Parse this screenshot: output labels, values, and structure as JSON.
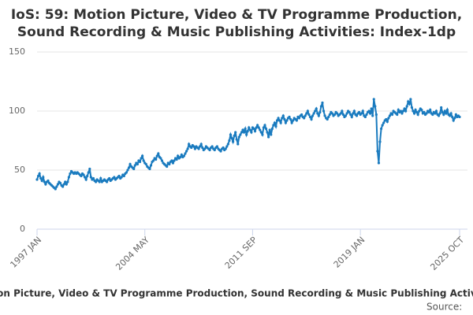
{
  "chart_data": {
    "type": "line",
    "title": [
      "IoS: 59: Motion Picture, Video & TV Programme Production,",
      "Sound Recording & Music Publishing Activities: Index-1dp"
    ],
    "source": "Source:",
    "categories": [
      "1997 JAN",
      null,
      null,
      null,
      null,
      null,
      null,
      null,
      null,
      null,
      null,
      null,
      null,
      null,
      null,
      null,
      null,
      null,
      null,
      null,
      null,
      null,
      null,
      null,
      null,
      null,
      null,
      null,
      null,
      null,
      null,
      null,
      null,
      null,
      null,
      null,
      null,
      null,
      null,
      null,
      null,
      null,
      null,
      null,
      null,
      null,
      null,
      null,
      null,
      null,
      null,
      null,
      null,
      null,
      null,
      null,
      null,
      null,
      null,
      null,
      null,
      null,
      null,
      null,
      null,
      null,
      null,
      null,
      null,
      null,
      null,
      null,
      null,
      null,
      null,
      null,
      null,
      null,
      null,
      null,
      null,
      null,
      null,
      null,
      null,
      null,
      null,
      null,
      "2004 MAY",
      null,
      null,
      null,
      null,
      null,
      null,
      null,
      null,
      null,
      null,
      null,
      null,
      null,
      null,
      null,
      null,
      null,
      null,
      null,
      null,
      null,
      null,
      null,
      null,
      null,
      null,
      null,
      null,
      null,
      null,
      null,
      null,
      null,
      null,
      null,
      null,
      null,
      null,
      null,
      null,
      null,
      null,
      null,
      null,
      null,
      null,
      null,
      null,
      null,
      null,
      null,
      null,
      null,
      null,
      null,
      null,
      null,
      null,
      null,
      null,
      null,
      null,
      null,
      null,
      null,
      null,
      null,
      null,
      null,
      null,
      null,
      null,
      null,
      null,
      null,
      null,
      null,
      null,
      null,
      null,
      null,
      null,
      null,
      null,
      null,
      null,
      null,
      "2011 SEP",
      null,
      null,
      null,
      null,
      null,
      null,
      null,
      null,
      null,
      null,
      null,
      null,
      null,
      null,
      null,
      null,
      null,
      null,
      null,
      null,
      null,
      null,
      null,
      null,
      null,
      null,
      null,
      null,
      null,
      null,
      null,
      null,
      null,
      null,
      null,
      null,
      null,
      null,
      null,
      null,
      null,
      null,
      null,
      null,
      null,
      null,
      null,
      null,
      null,
      null,
      null,
      null,
      null,
      null,
      null,
      null,
      null,
      null,
      null,
      null,
      null,
      null,
      null,
      null,
      null,
      null,
      null,
      null,
      null,
      null,
      null,
      null,
      null,
      null,
      null,
      null,
      null,
      null,
      null,
      null,
      null,
      null,
      null,
      null,
      null,
      null,
      null,
      "2019 JAN",
      null,
      null,
      null,
      null,
      null,
      null,
      null,
      null,
      null,
      null,
      null,
      null,
      null,
      null,
      null,
      null,
      null,
      null,
      null,
      null,
      null,
      null,
      null,
      null,
      null,
      null,
      null,
      null,
      null,
      null,
      null,
      null,
      null,
      null,
      null,
      null,
      null,
      null,
      null,
      null,
      null,
      null,
      null,
      null,
      null,
      null,
      null,
      null,
      null,
      null,
      null,
      null,
      null,
      null,
      null,
      null,
      null,
      null,
      null,
      null,
      null,
      null,
      null,
      null,
      null,
      null,
      null,
      null,
      null,
      null,
      null,
      null,
      null,
      null,
      null,
      null,
      null,
      null,
      null,
      null,
      "2025 OCT"
    ],
    "series": [
      {
        "name": "Motion Picture, Video & TV Programme Production, Sound Recording & Music Publishing Activities",
        "color": "#1a7bbf",
        "values": [
          42,
          45,
          47,
          43,
          41,
          44,
          40,
          38,
          40,
          41,
          39,
          38,
          37,
          36,
          35,
          34,
          36,
          38,
          40,
          39,
          37,
          36,
          38,
          40,
          38,
          40,
          44,
          47,
          49,
          48,
          47,
          48,
          47,
          48,
          47,
          46,
          45,
          47,
          46,
          44,
          42,
          45,
          48,
          51,
          44,
          42,
          43,
          41,
          40,
          42,
          41,
          40,
          43,
          40,
          41,
          42,
          41,
          40,
          42,
          43,
          41,
          42,
          43,
          44,
          42,
          43,
          44,
          45,
          43,
          44,
          46,
          45,
          47,
          48,
          50,
          52,
          55,
          53,
          52,
          51,
          54,
          56,
          55,
          58,
          57,
          60,
          62,
          58,
          56,
          55,
          53,
          52,
          51,
          54,
          57,
          58,
          60,
          59,
          62,
          64,
          61,
          60,
          58,
          56,
          55,
          54,
          53,
          56,
          55,
          57,
          58,
          56,
          58,
          60,
          59,
          62,
          60,
          61,
          63,
          61,
          62,
          64,
          66,
          68,
          72,
          70,
          69,
          71,
          70,
          68,
          70,
          69,
          68,
          70,
          72,
          69,
          67,
          68,
          70,
          69,
          68,
          67,
          69,
          70,
          68,
          67,
          69,
          70,
          68,
          67,
          66,
          68,
          69,
          67,
          68,
          70,
          72,
          75,
          80,
          77,
          74,
          79,
          82,
          76,
          72,
          78,
          80,
          82,
          84,
          82,
          85,
          80,
          83,
          86,
          84,
          82,
          86,
          85,
          83,
          86,
          88,
          86,
          84,
          82,
          80,
          86,
          88,
          85,
          82,
          78,
          84,
          80,
          85,
          88,
          90,
          87,
          92,
          94,
          92,
          90,
          94,
          96,
          93,
          90,
          92,
          94,
          95,
          93,
          90,
          92,
          94,
          93,
          92,
          95,
          94,
          96,
          97,
          95,
          94,
          96,
          98,
          100,
          97,
          95,
          93,
          96,
          98,
          100,
          102,
          98,
          96,
          99,
          104,
          107,
          100,
          96,
          94,
          93,
          95,
          97,
          99,
          98,
          96,
          97,
          99,
          98,
          96,
          97,
          98,
          100,
          97,
          95,
          96,
          98,
          100,
          99,
          97,
          95,
          98,
          100,
          97,
          96,
          98,
          99,
          97,
          98,
          100,
          96,
          95,
          97,
          99,
          100,
          98,
          102,
          96,
          110,
          104,
          97,
          66,
          56,
          74,
          85,
          88,
          90,
          92,
          93,
          91,
          94,
          96,
          98,
          97,
          100,
          99,
          98,
          97,
          101,
          99,
          100,
          98,
          100,
          102,
          100,
          104,
          108,
          106,
          110,
          103,
          100,
          98,
          101,
          99,
          97,
          100,
          102,
          101,
          98,
          99,
          97,
          98,
          100,
          99,
          101,
          98,
          97,
          99,
          98,
          100,
          97,
          96,
          98,
          103,
          99,
          97,
          100,
          98,
          101,
          97,
          96,
          98,
          95,
          92,
          94,
          97,
          95,
          96,
          95
        ]
      }
    ],
    "ylim": [
      0,
      150
    ],
    "yticks": [
      0,
      50,
      100,
      150
    ],
    "grid": true
  }
}
